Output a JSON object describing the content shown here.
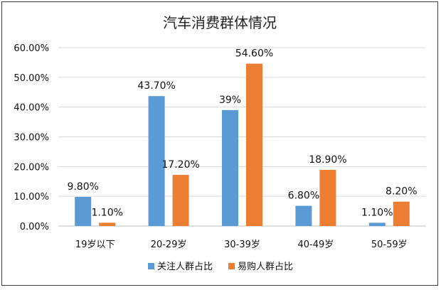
{
  "chart_data": {
    "type": "bar",
    "title": "汽车消费群体情况",
    "categories": [
      "19岁以下",
      "20-29岁",
      "30-39岁",
      "40-49岁",
      "50-59岁"
    ],
    "series": [
      {
        "name": "关注人群占比",
        "color": "#5b9bd5",
        "values": [
          9.8,
          43.7,
          39,
          6.8,
          1.1
        ],
        "labels": [
          "9.80%",
          "43.70%",
          "39%",
          "6.80%",
          "1.10%"
        ]
      },
      {
        "name": "易购人群占比",
        "color": "#ed7d31",
        "values": [
          1.1,
          17.2,
          54.6,
          18.9,
          8.2
        ],
        "labels": [
          "1.10%",
          "17.20%",
          "54.60%",
          "18.90%",
          "8.20%"
        ]
      }
    ],
    "yticks": [
      "0.00%",
      "10.00%",
      "20.00%",
      "30.00%",
      "40.00%",
      "50.00%",
      "60.00%"
    ],
    "ylim": [
      0,
      60
    ],
    "grid": true,
    "legend": "bottom"
  }
}
